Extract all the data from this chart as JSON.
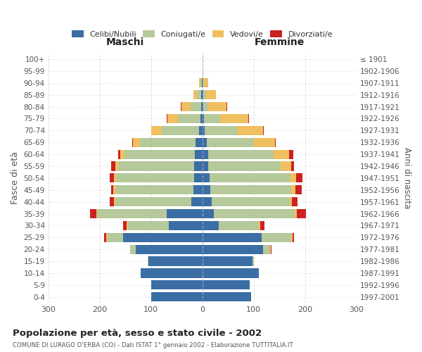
{
  "age_groups": [
    "0-4",
    "5-9",
    "10-14",
    "15-19",
    "20-24",
    "25-29",
    "30-34",
    "35-39",
    "40-44",
    "45-49",
    "50-54",
    "55-59",
    "60-64",
    "65-69",
    "70-74",
    "75-79",
    "80-84",
    "85-89",
    "90-94",
    "95-99",
    "100+"
  ],
  "birth_years": [
    "1997-2001",
    "1992-1996",
    "1987-1991",
    "1982-1986",
    "1977-1981",
    "1972-1976",
    "1967-1971",
    "1962-1966",
    "1957-1961",
    "1952-1956",
    "1947-1951",
    "1942-1946",
    "1937-1941",
    "1932-1936",
    "1927-1931",
    "1922-1926",
    "1917-1921",
    "1912-1916",
    "1907-1911",
    "1902-1906",
    "≤ 1901"
  ],
  "male_celibe": [
    100,
    100,
    120,
    105,
    130,
    155,
    65,
    70,
    22,
    17,
    16,
    16,
    14,
    13,
    6,
    4,
    3,
    2,
    1,
    0,
    0
  ],
  "male_coniugato": [
    0,
    0,
    0,
    2,
    10,
    30,
    80,
    135,
    148,
    153,
    152,
    148,
    138,
    108,
    73,
    44,
    20,
    8,
    3,
    0,
    0
  ],
  "male_vedovo": [
    0,
    0,
    0,
    0,
    0,
    2,
    2,
    2,
    2,
    3,
    4,
    5,
    8,
    14,
    20,
    20,
    18,
    8,
    2,
    0,
    0
  ],
  "male_divorziato": [
    0,
    0,
    0,
    0,
    1,
    4,
    8,
    12,
    8,
    5,
    8,
    8,
    4,
    2,
    1,
    1,
    1,
    0,
    0,
    0,
    0
  ],
  "female_celibe": [
    95,
    92,
    110,
    98,
    118,
    115,
    32,
    22,
    18,
    16,
    14,
    11,
    11,
    9,
    5,
    3,
    2,
    2,
    1,
    0,
    0
  ],
  "female_coniugato": [
    0,
    0,
    0,
    2,
    14,
    58,
    78,
    158,
    152,
    157,
    157,
    142,
    128,
    92,
    63,
    32,
    10,
    5,
    2,
    0,
    0
  ],
  "female_vedovo": [
    0,
    0,
    0,
    0,
    1,
    3,
    3,
    4,
    5,
    8,
    12,
    20,
    30,
    40,
    50,
    55,
    35,
    20,
    8,
    1,
    1
  ],
  "female_divorziato": [
    0,
    0,
    0,
    0,
    1,
    3,
    8,
    18,
    10,
    12,
    12,
    6,
    8,
    2,
    2,
    1,
    1,
    0,
    0,
    0,
    0
  ],
  "color_celibe": "#3a6ea5",
  "color_coniugato": "#b5c99a",
  "color_vedovo": "#f0c060",
  "color_divorziato": "#cc2222",
  "title": "Popolazione per età, sesso e stato civile - 2002",
  "subtitle": "COMUNE DI LURAGO D'ERBA (CO) - Dati ISTAT 1° gennaio 2002 - Elaborazione TUTTITALIA.IT",
  "xlabel_left": "Maschi",
  "xlabel_right": "Femmine",
  "ylabel_left": "Fasce di età",
  "ylabel_right": "Anni di nascita",
  "xlim": 300,
  "bg_color": "#ffffff",
  "grid_color": "#cccccc"
}
